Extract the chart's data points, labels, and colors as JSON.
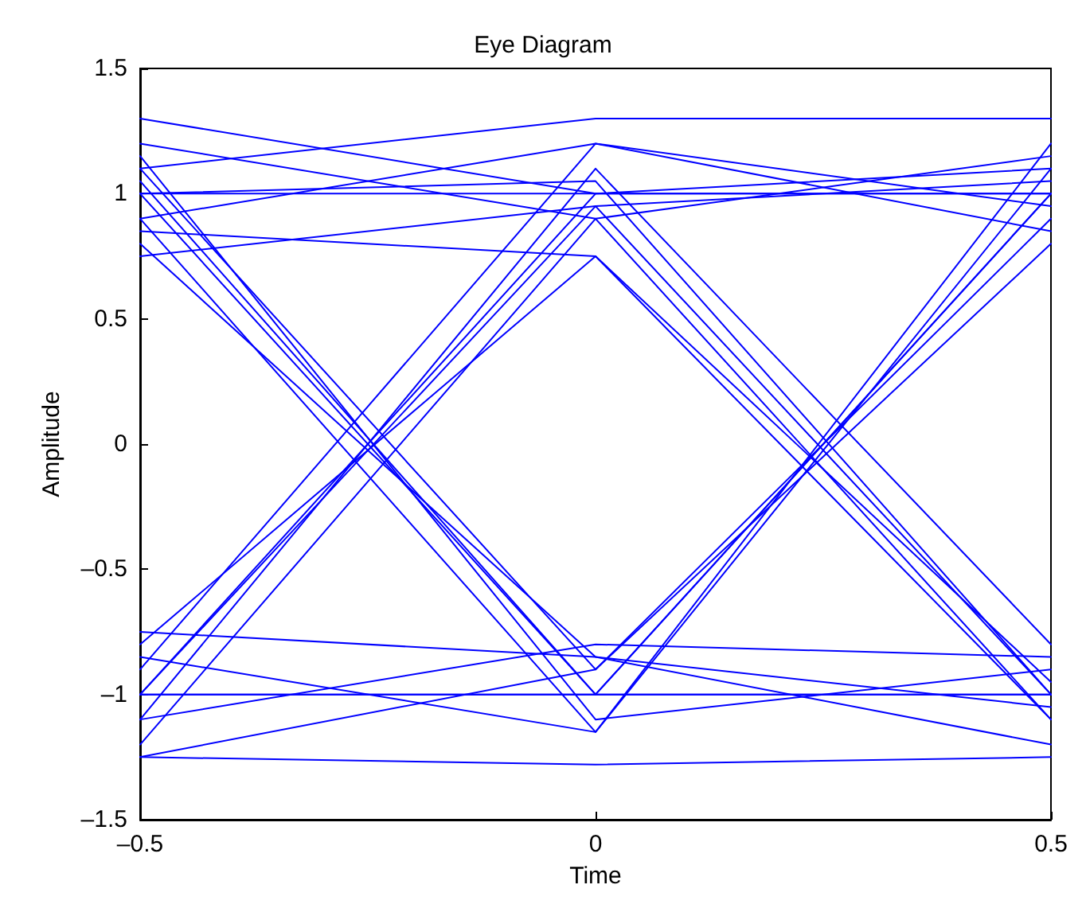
{
  "chart_data": {
    "type": "line",
    "title": "Eye Diagram",
    "xlabel": "Time",
    "ylabel": "Amplitude",
    "x": [
      -0.5,
      0,
      0.5
    ],
    "xlim": [
      -0.5,
      0.5
    ],
    "xticks": [
      {
        "value": -0.5,
        "label": "–0.5"
      },
      0,
      0.5
    ],
    "ylim": [
      -1.5,
      1.5
    ],
    "yticks": [
      {
        "value": -1.5,
        "label": "–1.5"
      },
      {
        "value": -1,
        "label": "–1"
      },
      {
        "value": -0.5,
        "label": "–0.5"
      },
      0,
      0.5,
      1,
      1.5
    ],
    "grid": false,
    "marker": "none",
    "line_style": "solid",
    "series": [
      {
        "color": "#0000ff",
        "values": [
          1.0,
          1.0,
          1.0
        ]
      },
      {
        "color": "#0000ff",
        "values": [
          1.3,
          1.0,
          1.1
        ]
      },
      {
        "color": "#0000ff",
        "values": [
          0.9,
          1.2,
          0.95
        ]
      },
      {
        "color": "#0000ff",
        "values": [
          1.1,
          1.3,
          1.3
        ]
      },
      {
        "color": "#0000ff",
        "values": [
          0.75,
          0.95,
          1.05
        ]
      },
      {
        "color": "#0000ff",
        "values": [
          1.0,
          1.05,
          -1.0
        ]
      },
      {
        "color": "#0000ff",
        "values": [
          1.2,
          0.9,
          -1.1
        ]
      },
      {
        "color": "#0000ff",
        "values": [
          0.85,
          0.75,
          -0.95
        ]
      },
      {
        "color": "#0000ff",
        "values": [
          1.0,
          -1.0,
          1.0
        ]
      },
      {
        "color": "#0000ff",
        "values": [
          1.1,
          -0.9,
          0.9
        ]
      },
      {
        "color": "#0000ff",
        "values": [
          0.9,
          -1.15,
          1.1
        ]
      },
      {
        "color": "#0000ff",
        "values": [
          1.05,
          -1.0,
          -1.0
        ]
      },
      {
        "color": "#0000ff",
        "values": [
          0.8,
          -0.85,
          -1.2
        ]
      },
      {
        "color": "#0000ff",
        "values": [
          1.15,
          -1.1,
          -0.9
        ]
      },
      {
        "color": "#0000ff",
        "values": [
          -1.0,
          1.0,
          1.0
        ]
      },
      {
        "color": "#0000ff",
        "values": [
          -0.9,
          1.2,
          0.85
        ]
      },
      {
        "color": "#0000ff",
        "values": [
          -1.2,
          0.9,
          1.15
        ]
      },
      {
        "color": "#0000ff",
        "values": [
          -1.0,
          0.95,
          -1.0
        ]
      },
      {
        "color": "#0000ff",
        "values": [
          -0.8,
          0.75,
          -1.1
        ]
      },
      {
        "color": "#0000ff",
        "values": [
          -1.1,
          1.1,
          -0.8
        ]
      },
      {
        "color": "#0000ff",
        "values": [
          -1.0,
          -1.0,
          1.0
        ]
      },
      {
        "color": "#0000ff",
        "values": [
          -1.25,
          -0.9,
          0.8
        ]
      },
      {
        "color": "#0000ff",
        "values": [
          -0.85,
          -1.15,
          1.2
        ]
      },
      {
        "color": "#0000ff",
        "values": [
          -1.0,
          -1.0,
          -1.0
        ]
      },
      {
        "color": "#0000ff",
        "values": [
          -1.25,
          -1.28,
          -1.25
        ]
      },
      {
        "color": "#0000ff",
        "values": [
          -0.75,
          -0.85,
          -1.05
        ]
      },
      {
        "color": "#0000ff",
        "values": [
          -1.1,
          -0.8,
          -0.85
        ]
      }
    ]
  }
}
